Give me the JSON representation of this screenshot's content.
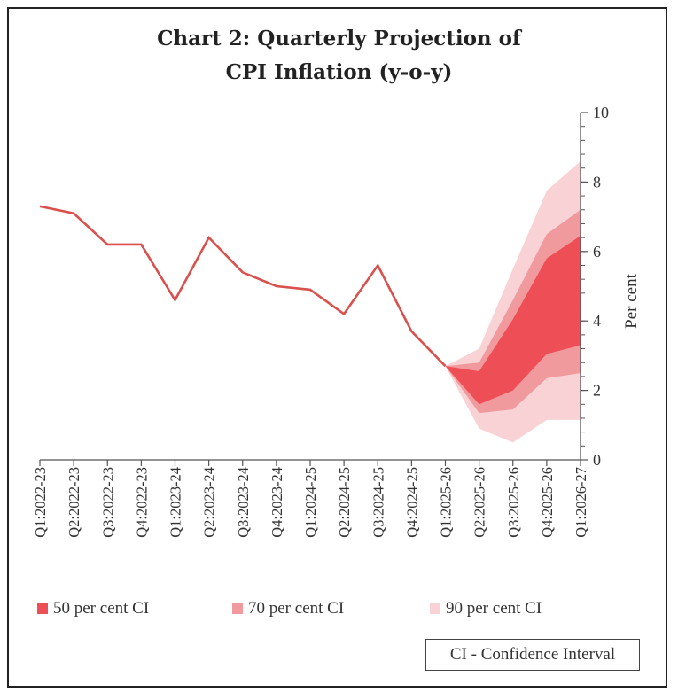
{
  "chart_data": {
    "type": "line",
    "title_line1": "Chart 2: Quarterly Projection of",
    "title_line2": "CPI Inflation (y-o-y)",
    "xlabel": "",
    "ylabel": "Per cent",
    "ylim": [
      0,
      10
    ],
    "yticks": [
      "0",
      "2",
      "4",
      "6",
      "8",
      "10"
    ],
    "categories": [
      "Q1:2022-23",
      "Q2:2022-23",
      "Q3:2022-23",
      "Q4:2022-23",
      "Q1:2023-24",
      "Q2:2023-24",
      "Q3:2023-24",
      "Q4:2023-24",
      "Q1:2024-25",
      "Q2:2024-25",
      "Q3:2024-25",
      "Q4:2024-25",
      "Q1:2025-26",
      "Q2:2025-26",
      "Q3:2025-26",
      "Q4:2025-26",
      "Q1:2026-27"
    ],
    "actual": {
      "name": "CPI inflation",
      "values": [
        7.3,
        7.1,
        6.2,
        6.2,
        4.6,
        6.4,
        5.4,
        5.0,
        4.9,
        4.2,
        5.6,
        3.7,
        2.7
      ]
    },
    "fan": {
      "start_index": 12,
      "bands": [
        {
          "name": "90 per cent CI",
          "color": "#f8d2d4",
          "lower": [
            2.7,
            0.9,
            0.5,
            1.15,
            1.15
          ],
          "upper": [
            2.7,
            3.2,
            5.5,
            7.75,
            8.6
          ]
        },
        {
          "name": "70 per cent CI",
          "color": "#f19a9e",
          "lower": [
            2.7,
            1.35,
            1.45,
            2.35,
            2.5
          ],
          "upper": [
            2.7,
            2.8,
            4.6,
            6.5,
            7.2
          ]
        },
        {
          "name": "50 per cent CI",
          "color": "#ee4f56",
          "lower": [
            2.7,
            1.6,
            2.0,
            3.05,
            3.3
          ],
          "upper": [
            2.7,
            2.55,
            4.05,
            5.8,
            6.45
          ]
        }
      ]
    },
    "line_color": "#d9504c",
    "legend": [
      "50 per cent CI",
      "70 per cent CI",
      "90 per cent CI"
    ],
    "legend_position": "bottom",
    "note": "CI - Confidence Interval",
    "grid": false
  }
}
